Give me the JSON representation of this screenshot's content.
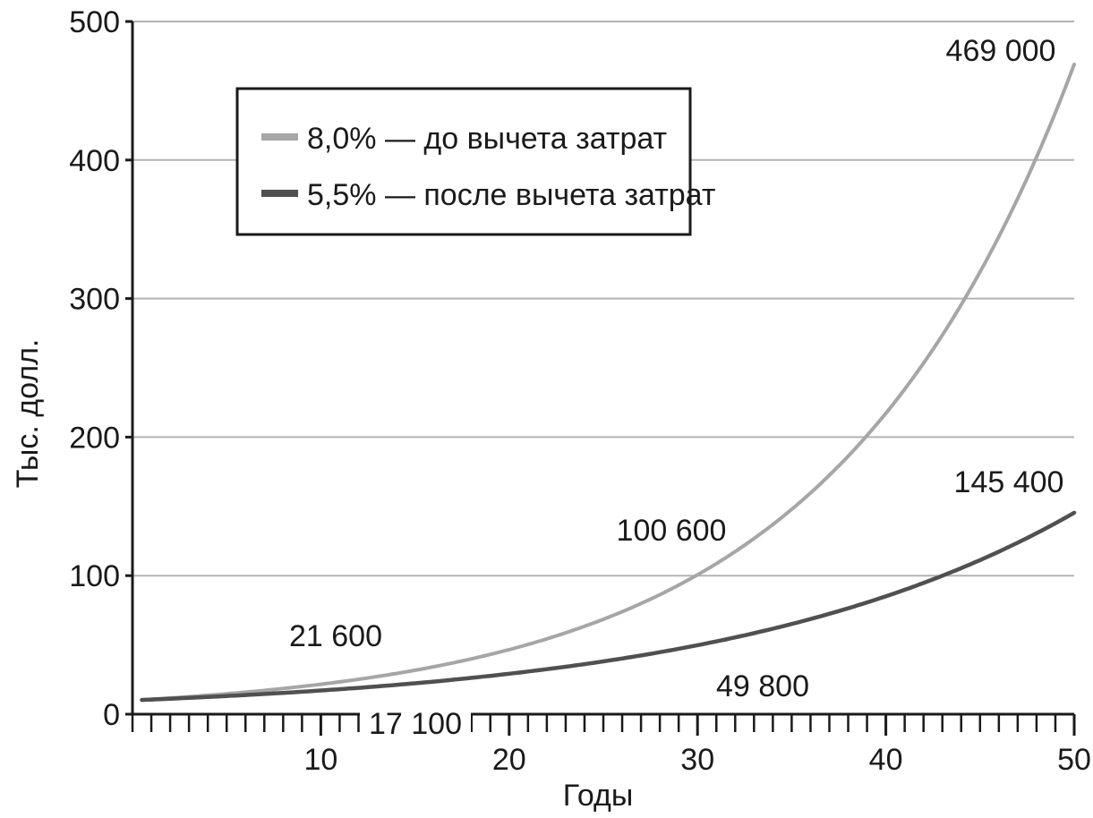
{
  "chart_data": {
    "type": "line",
    "xlabel": "Годы",
    "ylabel": "Тыс. долл.",
    "xlim": [
      0,
      50
    ],
    "ylim": [
      0,
      500
    ],
    "x_ticks": [
      10,
      20,
      30,
      40,
      50
    ],
    "y_ticks": [
      0,
      100,
      200,
      300,
      400,
      500
    ],
    "x_minor_step": 1,
    "grid": "horizontal",
    "legend_position": "top-left",
    "series": [
      {
        "name": "8,0% — до вычета затрат",
        "color": "#a6a6a6",
        "rate": 0.08,
        "x": [
          0,
          5,
          10,
          15,
          20,
          25,
          30,
          35,
          40,
          45,
          50
        ],
        "values": [
          10,
          14.7,
          21.6,
          31.7,
          46.6,
          68.5,
          100.6,
          147.9,
          217.2,
          319.2,
          469.0
        ]
      },
      {
        "name": "5,5% — после вычета затрат",
        "color": "#505050",
        "rate": 0.055,
        "x": [
          0,
          5,
          10,
          15,
          20,
          25,
          30,
          35,
          40,
          45,
          50
        ],
        "values": [
          10,
          13.1,
          17.1,
          22.3,
          29.2,
          38.1,
          49.8,
          65.1,
          85.1,
          111.2,
          145.4
        ]
      }
    ],
    "annotations": [
      {
        "text": "21 600",
        "series": 0
      },
      {
        "text": "100 600",
        "series": 0
      },
      {
        "text": "469 000",
        "series": 0
      },
      {
        "text": "17 100",
        "series": 1
      },
      {
        "text": "49 800",
        "series": 1
      },
      {
        "text": "145 400",
        "series": 1
      }
    ]
  }
}
